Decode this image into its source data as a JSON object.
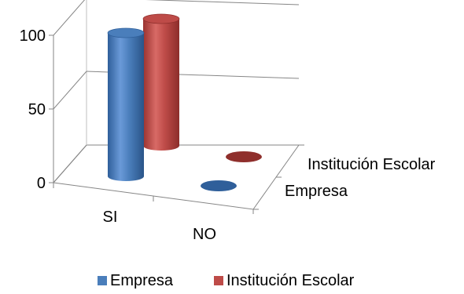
{
  "chart_data": {
    "type": "bar",
    "style": "3d-cylinder",
    "categories": [
      "SI",
      "NO"
    ],
    "series": [
      {
        "name": "Empresa",
        "values": [
          100,
          0
        ],
        "color": "#4a7ebb"
      },
      {
        "name": "Institución Escolar",
        "values": [
          100,
          0
        ],
        "color": "#be4b48"
      }
    ],
    "depth_labels": [
      "Institución Escolar",
      "Empresa"
    ],
    "y_ticks": [
      0,
      50,
      100
    ],
    "ylim": [
      0,
      100
    ],
    "grid": true,
    "legend_position": "bottom"
  }
}
